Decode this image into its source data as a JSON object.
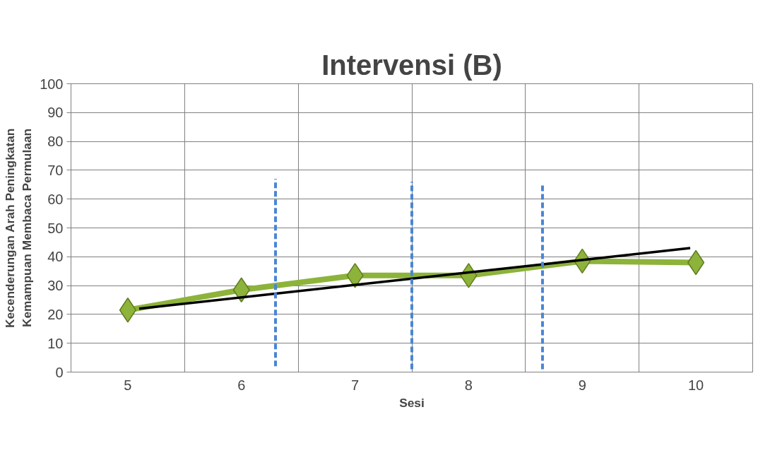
{
  "chart_data": {
    "type": "line",
    "title": "Intervensi (B)",
    "xlabel": "Sesi",
    "ylabel": "Kecenderungan Arah Peningkatan\nKemampuan Membaca Permulaan",
    "x": [
      5,
      6,
      7,
      8,
      9,
      10
    ],
    "xlim": [
      4.5,
      10.5
    ],
    "xticks": [
      5,
      6,
      7,
      8,
      9,
      10,
      {
        "value": 4.5,
        "label": null
      },
      {
        "value": 5.5,
        "label": null
      },
      {
        "value": 6.5,
        "label": null
      },
      {
        "value": 7.5,
        "label": null
      },
      {
        "value": 8.5,
        "label": null
      },
      {
        "value": 9.5,
        "label": null
      },
      {
        "value": 10.5,
        "label": null
      }
    ],
    "ylim": [
      0,
      100
    ],
    "yticks": [
      0,
      10,
      20,
      30,
      40,
      50,
      60,
      70,
      80,
      90,
      100
    ],
    "grid": true,
    "marker": "diamond",
    "line_style": "solid",
    "series": [
      {
        "color": "#8db33a",
        "values": [
          21.5,
          28.5,
          33.5,
          33.5,
          38.5,
          38
        ]
      },
      {
        "type": "line",
        "color": "#000000",
        "marker": "none",
        "x": [
          5.1,
          9.95
        ],
        "values": [
          22,
          43
        ]
      },
      {
        "type": "line",
        "color": "#4a86d4",
        "marker": "none",
        "line_style": "dashed",
        "x": [
          6.3,
          6.3
        ],
        "values": [
          2,
          67
        ]
      },
      {
        "type": "line",
        "color": "#4a86d4",
        "marker": "none",
        "line_style": "dashed",
        "x": [
          7.5,
          7.5
        ],
        "values": [
          1,
          66
        ]
      },
      {
        "type": "line",
        "color": "#4a86d4",
        "marker": "none",
        "line_style": "dashed",
        "x": [
          8.65,
          8.65
        ],
        "values": [
          1,
          65.5
        ]
      }
    ]
  }
}
